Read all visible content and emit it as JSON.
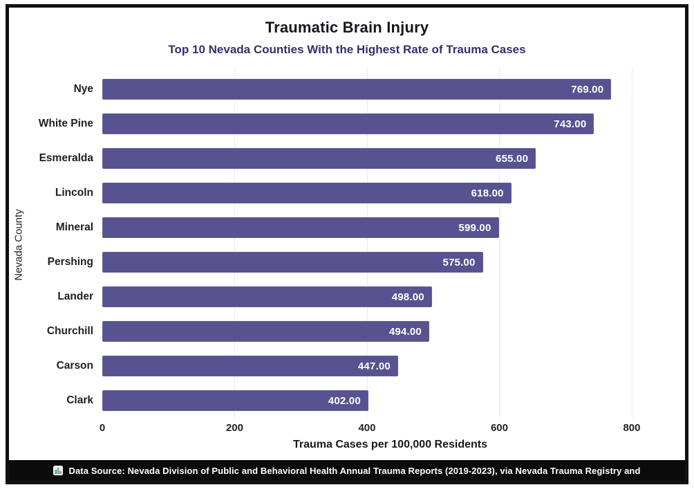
{
  "chart_data": {
    "type": "bar",
    "orientation": "horizontal",
    "title": "Traumatic Brain Injury",
    "subtitle": "Top 10 Nevada Counties With the Highest Rate of Trauma Cases",
    "categories": [
      "Nye",
      "White Pine",
      "Esmeralda",
      "Lincoln",
      "Mineral",
      "Pershing",
      "Lander",
      "Churchill",
      "Carson",
      "Clark"
    ],
    "values": [
      769,
      743,
      655,
      618,
      599,
      575,
      498,
      494,
      447,
      402
    ],
    "value_labels": [
      "769.00",
      "743.00",
      "655.00",
      "618.00",
      "599.00",
      "575.00",
      "498.00",
      "494.00",
      "447.00",
      "402.00"
    ],
    "xlabel": "Trauma Cases per 100,000 Residents",
    "ylabel": "Nevada County",
    "xticks": [
      0,
      200,
      400,
      600,
      800
    ],
    "xlim": [
      0,
      870
    ],
    "grid": "vertical-light",
    "legend": "none",
    "bar_color": "#585290",
    "grid_color": "#eceaf2",
    "title_color": "#16161e",
    "subtitle_color": "#33316b"
  },
  "footer": {
    "icon": "bar-chart-icon",
    "icon_colors": [
      "#4a90d9",
      "#57c84d",
      "#e8649c"
    ],
    "text": "Data Source: Nevada Division of Public and Behavioral Health Annual Trauma Reports (2019-2023), via Nevada Trauma Registry and"
  }
}
